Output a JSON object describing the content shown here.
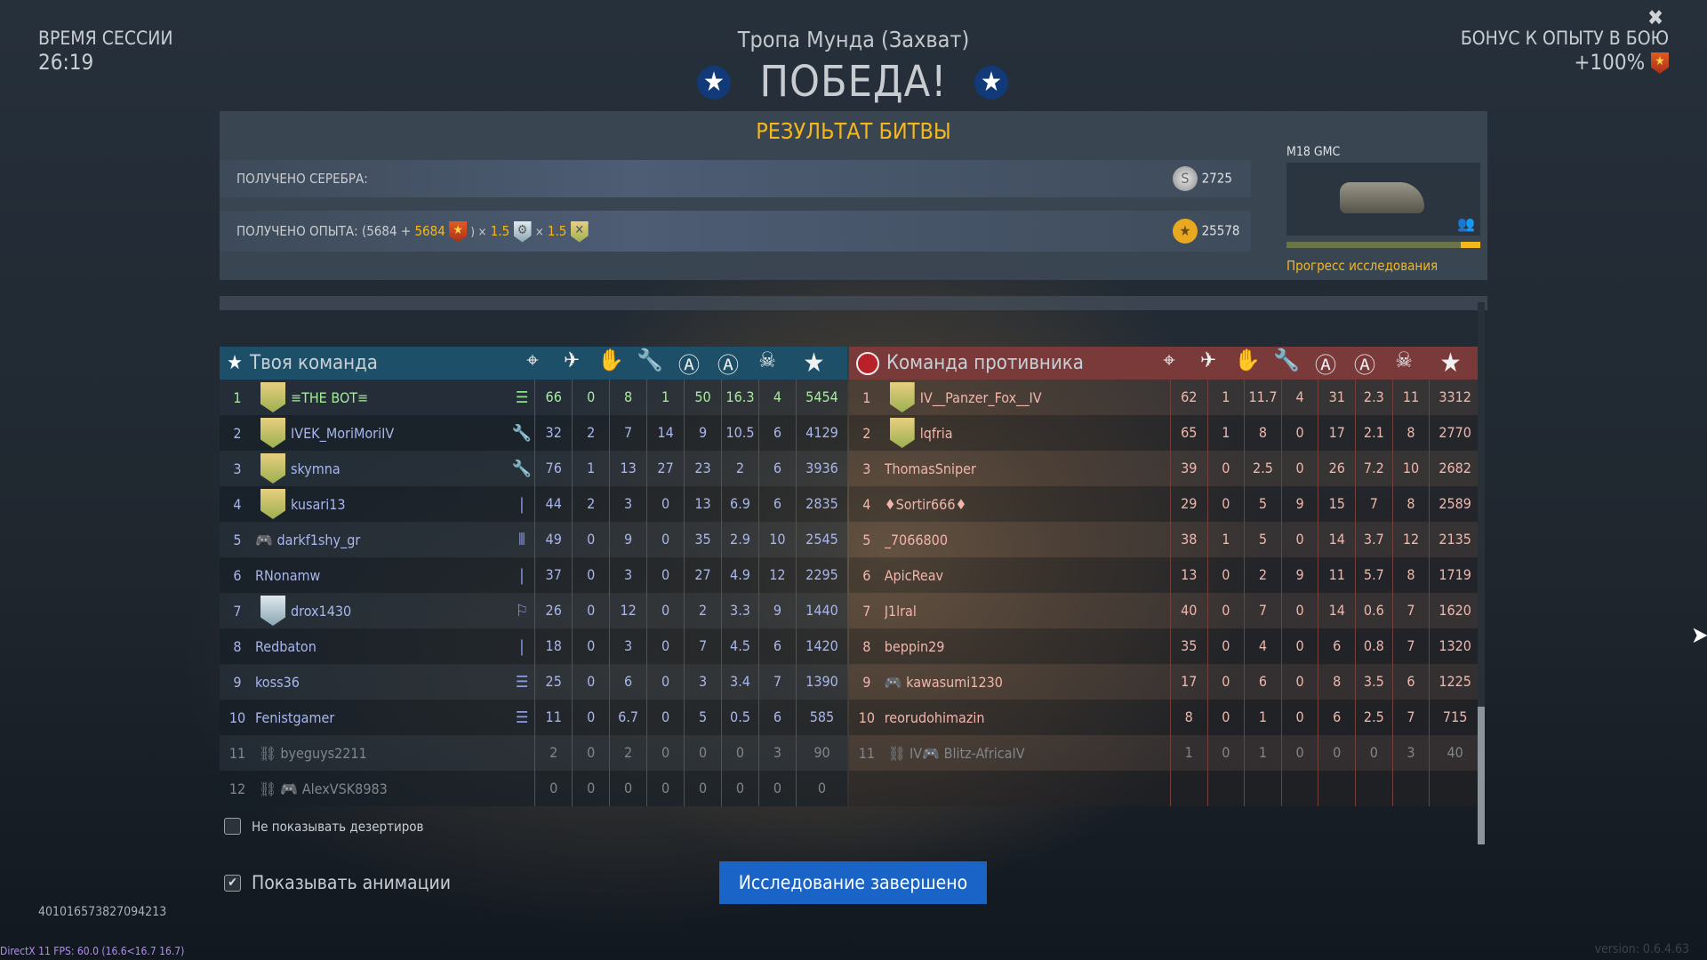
{
  "session": {
    "label": "ВРЕМЯ СЕССИИ",
    "time": "26:19"
  },
  "header": {
    "map": "Тропа Мунда (Захват)",
    "result": "ПОБЕДА!"
  },
  "bonus": {
    "label": "БОНУС К ОПЫТУ В БОЮ",
    "value": "+100%"
  },
  "results": {
    "title": "РЕЗУЛЬТАТ БИТВЫ",
    "silver_label": "ПОЛУЧЕНО СЕРЕБРА:",
    "silver": "2725",
    "exp_label": "ПОЛУЧЕНО ОПЫТА: (5684 + ",
    "exp_bonus": "5684",
    "exp_mult1_x": ") ×",
    "exp_mult1": "1.5",
    "exp_mult2_x": "×",
    "exp_mult2": "1.5",
    "exp": "25578",
    "vehicle": "M18 GMC",
    "research_progress": 0.9,
    "research_label": "Прогресс исследования"
  },
  "columns_icons": [
    "crosshair-icon",
    "plane-tank-icon",
    "hand-icon",
    "wrench-icon",
    "shield-a-icon",
    "circle-a-icon",
    "skull-icon",
    "star-icon"
  ],
  "my_team": {
    "title": "Твоя команда",
    "color": "#1d5068",
    "rows": [
      {
        "n": "1",
        "name": "≡THE BOT≡",
        "emblem": "gold",
        "role": "list",
        "me": true,
        "s": [
          "66",
          "0",
          "8",
          "1",
          "50",
          "16.3",
          "4",
          "5454"
        ]
      },
      {
        "n": "2",
        "name": "IVEK_MoriMoriIV",
        "emblem": "gold",
        "role": "wrench",
        "s": [
          "32",
          "2",
          "7",
          "14",
          "9",
          "10.5",
          "6",
          "4129"
        ]
      },
      {
        "n": "3",
        "name": "skymna",
        "emblem": "gold",
        "role": "wrench",
        "s": [
          "76",
          "1",
          "13",
          "27",
          "23",
          "2",
          "6",
          "3936"
        ]
      },
      {
        "n": "4",
        "name": "kusari13",
        "emblem": "gold",
        "role": "shell",
        "s": [
          "44",
          "2",
          "3",
          "0",
          "13",
          "6.9",
          "6",
          "2835"
        ]
      },
      {
        "n": "5",
        "name": "🎮 darkf1shy_gr",
        "role": "shells",
        "s": [
          "49",
          "0",
          "9",
          "0",
          "35",
          "2.9",
          "10",
          "2545"
        ]
      },
      {
        "n": "6",
        "name": "RNonamw",
        "role": "shell",
        "s": [
          "37",
          "0",
          "3",
          "0",
          "27",
          "4.9",
          "12",
          "2295"
        ]
      },
      {
        "n": "7",
        "name": "drox1430",
        "emblem": "blue",
        "role": "flag",
        "s": [
          "26",
          "0",
          "12",
          "0",
          "2",
          "3.3",
          "9",
          "1440"
        ]
      },
      {
        "n": "8",
        "name": "Redbaton",
        "role": "shell",
        "s": [
          "18",
          "0",
          "3",
          "0",
          "7",
          "4.5",
          "6",
          "1420"
        ]
      },
      {
        "n": "9",
        "name": "koss36",
        "role": "list",
        "s": [
          "25",
          "0",
          "6",
          "0",
          "3",
          "3.4",
          "7",
          "1390"
        ]
      },
      {
        "n": "10",
        "name": "Fenistgamer",
        "role": "list",
        "s": [
          "11",
          "0",
          "6.7",
          "0",
          "5",
          "0.5",
          "6",
          "585"
        ]
      },
      {
        "n": "11",
        "name": "byeguys2211",
        "deserter": true,
        "s": [
          "2",
          "0",
          "2",
          "0",
          "0",
          "0",
          "3",
          "90"
        ]
      },
      {
        "n": "12",
        "name": "🎮 AlexVSK8983",
        "deserter": true,
        "s": [
          "0",
          "0",
          "0",
          "0",
          "0",
          "0",
          "0",
          "0"
        ]
      }
    ]
  },
  "enemy_team": {
    "title": "Команда противника",
    "color": "#7a3a3a",
    "rows": [
      {
        "n": "1",
        "name": "IV__Panzer_Fox__IV",
        "emblem": "gold",
        "s": [
          "62",
          "1",
          "11.7",
          "4",
          "31",
          "2.3",
          "11",
          "3312"
        ]
      },
      {
        "n": "2",
        "name": "lqfria",
        "emblem": "gold",
        "s": [
          "65",
          "1",
          "8",
          "0",
          "17",
          "2.1",
          "8",
          "2770"
        ]
      },
      {
        "n": "3",
        "name": "ThomasSniper",
        "s": [
          "39",
          "0",
          "2.5",
          "0",
          "26",
          "7.2",
          "10",
          "2682"
        ]
      },
      {
        "n": "4",
        "name": "♦Sortir666♦",
        "s": [
          "29",
          "0",
          "5",
          "9",
          "15",
          "7",
          "8",
          "2589"
        ]
      },
      {
        "n": "5",
        "name": "_7066800",
        "s": [
          "38",
          "1",
          "5",
          "0",
          "14",
          "3.7",
          "12",
          "2135"
        ]
      },
      {
        "n": "6",
        "name": "ApicReav",
        "s": [
          "13",
          "0",
          "2",
          "9",
          "11",
          "5.7",
          "8",
          "1719"
        ]
      },
      {
        "n": "7",
        "name": "J1lral",
        "s": [
          "40",
          "0",
          "7",
          "0",
          "14",
          "0.6",
          "7",
          "1620"
        ]
      },
      {
        "n": "8",
        "name": "beppin29",
        "s": [
          "35",
          "0",
          "4",
          "0",
          "6",
          "0.8",
          "7",
          "1320"
        ]
      },
      {
        "n": "9",
        "name": "🎮 kawasumi1230",
        "s": [
          "17",
          "0",
          "6",
          "0",
          "8",
          "3.5",
          "6",
          "1225"
        ]
      },
      {
        "n": "10",
        "name": "reorudohimazin",
        "s": [
          "8",
          "0",
          "1",
          "0",
          "6",
          "2.5",
          "7",
          "715"
        ]
      },
      {
        "n": "11",
        "name": "IV🎮 Blitz-AfricaIV",
        "deserter": true,
        "s": [
          "1",
          "0",
          "1",
          "0",
          "0",
          "0",
          "3",
          "40"
        ]
      },
      {
        "n": "",
        "name": "",
        "empty": true,
        "s": [
          "",
          "",
          "",
          "",
          "",
          "",
          "",
          ""
        ]
      }
    ]
  },
  "options": {
    "hide_deserters": "Не показывать дезертиров",
    "hide_deserters_checked": false,
    "show_animations": "Показывать анимации",
    "show_animations_checked": true
  },
  "button": "Исследование завершено",
  "session_id": "401016573827094213",
  "fps": "DirectX 11 FPS: 60.0 (16.6<16.7 16.7)",
  "version": "version: 0.6.4.63"
}
